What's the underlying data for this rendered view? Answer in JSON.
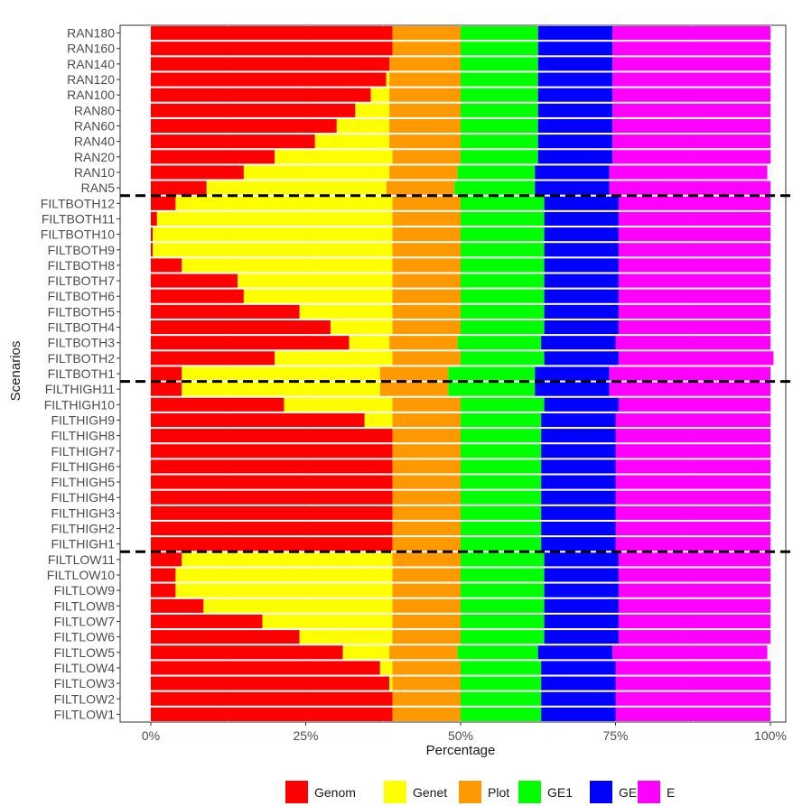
{
  "chart_data": {
    "type": "bar",
    "orientation": "horizontal",
    "stacked": true,
    "percent": true,
    "title": "",
    "xlabel": "Percentage",
    "ylabel": "Scenarios",
    "xlim": [
      0,
      100
    ],
    "x_ticks": [
      "0%",
      "25%",
      "50%",
      "75%",
      "100%"
    ],
    "x_tick_values": [
      0,
      25,
      50,
      75,
      100
    ],
    "grid": true,
    "legend_position": "bottom",
    "reference_lines": {
      "style": "dashed",
      "color": "#000000",
      "between": [
        [
          "RAN5",
          "FILTBOTH12"
        ],
        [
          "FILTBOTH1",
          "FILTHIGH11"
        ],
        [
          "FILTHIGH1",
          "FILTLOW11"
        ]
      ]
    },
    "categories": [
      "RAN180",
      "RAN160",
      "RAN140",
      "RAN120",
      "RAN100",
      "RAN80",
      "RAN60",
      "RAN40",
      "RAN20",
      "RAN10",
      "RAN5",
      "FILTBOTH12",
      "FILTBOTH11",
      "FILTBOTH10",
      "FILTBOTH9",
      "FILTBOTH8",
      "FILTBOTH7",
      "FILTBOTH6",
      "FILTBOTH5",
      "FILTBOTH4",
      "FILTBOTH3",
      "FILTBOTH2",
      "FILTBOTH1",
      "FILTHIGH11",
      "FILTHIGH10",
      "FILTHIGH9",
      "FILTHIGH8",
      "FILTHIGH7",
      "FILTHIGH6",
      "FILTHIGH5",
      "FILTHIGH4",
      "FILTHIGH3",
      "FILTHIGH2",
      "FILTHIGH1",
      "FILTLOW11",
      "FILTLOW10",
      "FILTLOW9",
      "FILTLOW8",
      "FILTLOW7",
      "FILTLOW6",
      "FILTLOW5",
      "FILTLOW4",
      "FILTLOW3",
      "FILTLOW2",
      "FILTLOW1"
    ],
    "series": [
      {
        "name": "Genom",
        "color": "#ff0000",
        "values": [
          39,
          39,
          38.5,
          38,
          35.5,
          33,
          30,
          26.5,
          20,
          15,
          9,
          4,
          1,
          0.3,
          0.3,
          5,
          14,
          15,
          24,
          29,
          32,
          20,
          5,
          5,
          21.5,
          34.5,
          39,
          39,
          39,
          39,
          39,
          39,
          39,
          39,
          5,
          4,
          4,
          8.5,
          18,
          24,
          31,
          37,
          38.5,
          39,
          39
        ]
      },
      {
        "name": "Genet",
        "color": "#ffff00",
        "values": [
          0,
          0,
          0,
          0.5,
          3,
          5.5,
          8.5,
          12,
          19,
          23.5,
          29,
          35,
          38,
          38.7,
          38.7,
          34,
          25,
          24,
          15,
          10,
          6.5,
          19,
          32,
          32,
          17.5,
          4.5,
          0,
          0,
          0,
          0,
          0,
          0,
          0,
          0,
          34,
          35,
          35,
          30.5,
          21,
          15,
          7.5,
          2,
          0.5,
          0,
          0
        ]
      },
      {
        "name": "Plot",
        "color": "#ff9900",
        "values": [
          11,
          11,
          11.5,
          11.5,
          11.5,
          11.5,
          11.5,
          11.5,
          11,
          11,
          11,
          11,
          11,
          11,
          11,
          11,
          11,
          11,
          11,
          11,
          11,
          11,
          11,
          11,
          11,
          11,
          11,
          11,
          11,
          11,
          11,
          11,
          11,
          11,
          11,
          11,
          11,
          11,
          11,
          11,
          11,
          11,
          11,
          11,
          11
        ]
      },
      {
        "name": "GE1",
        "color": "#00ff00",
        "values": [
          12.5,
          12.5,
          12.5,
          12.5,
          12.5,
          12.5,
          12.5,
          12.5,
          12.5,
          12.5,
          13,
          13.5,
          13.5,
          13.5,
          13.5,
          13.5,
          13.5,
          13.5,
          13.5,
          13.5,
          13.5,
          13.5,
          14,
          14,
          13.5,
          13,
          13,
          13,
          13,
          13,
          13,
          13,
          13,
          13,
          13.5,
          13.5,
          13.5,
          13.5,
          13.5,
          13.5,
          13,
          13,
          13,
          13,
          13
        ]
      },
      {
        "name": "GE2",
        "color": "#0000ff",
        "values": [
          12,
          12,
          12,
          12,
          12,
          12,
          12,
          12,
          12,
          12,
          12,
          12,
          12,
          12,
          12,
          12,
          12,
          12,
          12,
          12,
          12,
          12,
          12,
          12,
          12,
          12,
          12,
          12,
          12,
          12,
          12,
          12,
          12,
          12,
          12,
          12,
          12,
          12,
          12,
          12,
          12,
          12,
          12,
          12,
          12
        ]
      },
      {
        "name": "E",
        "color": "#ff00ff",
        "values": [
          25.5,
          25.5,
          25.5,
          25.5,
          25.5,
          25.5,
          25.5,
          25.5,
          25.5,
          25.5,
          26,
          24.5,
          24.5,
          24.5,
          24.5,
          24.5,
          24.5,
          24.5,
          24.5,
          24.5,
          25,
          25,
          26,
          26,
          24.5,
          25,
          25,
          25,
          25,
          25,
          25,
          25,
          25,
          25,
          24.5,
          24.5,
          24.5,
          24.5,
          24.5,
          24.5,
          25,
          25,
          25,
          25,
          25
        ]
      }
    ]
  }
}
